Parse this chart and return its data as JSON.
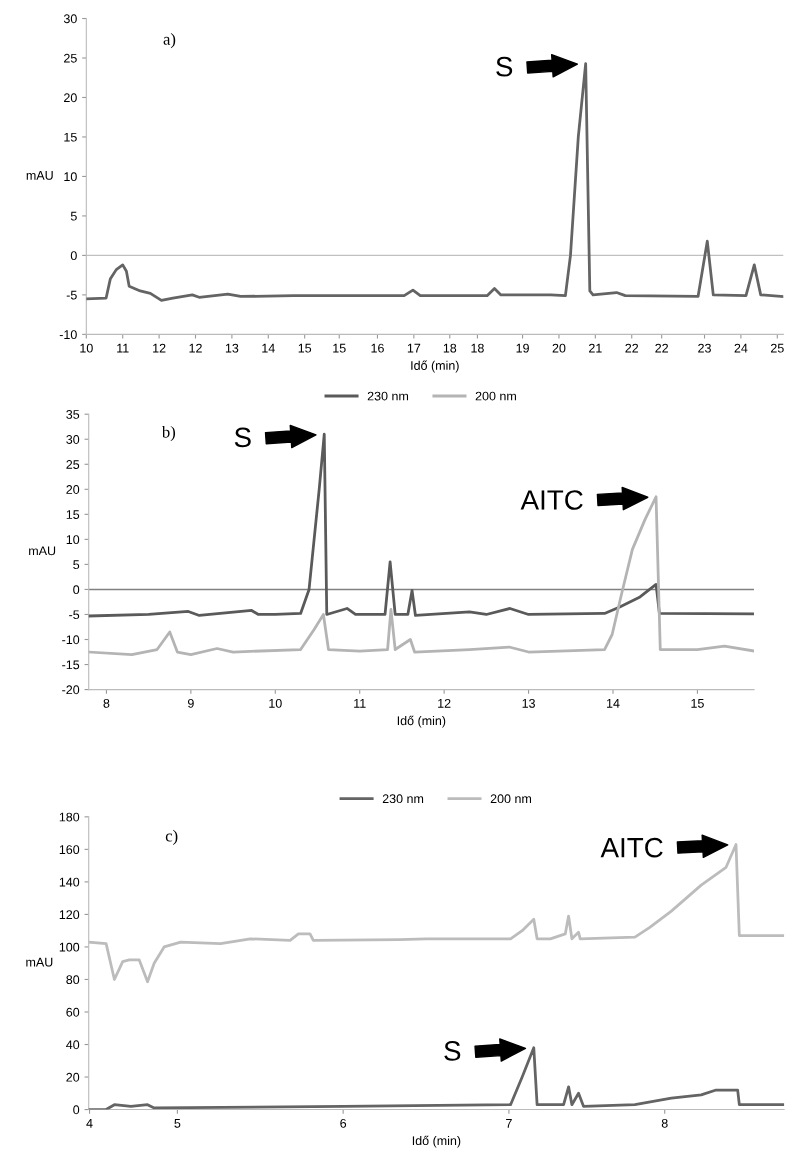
{
  "chart_data": [
    {
      "type": "line",
      "xlabel": "Idő (min)",
      "ylabel": "mAU",
      "xlim": [
        10,
        25.13
      ],
      "ylim": [
        -10,
        30
      ],
      "yticks": [
        -10,
        -5,
        0,
        5,
        10,
        15,
        20,
        25,
        30
      ],
      "xticks": [
        {
          "value": 10,
          "label": "10"
        },
        {
          "value": 10.79,
          "label": "11"
        },
        {
          "value": 11.58,
          "label": "12"
        },
        {
          "value": 12.37,
          "label": "12"
        },
        {
          "value": 13.16,
          "label": "13"
        },
        {
          "value": 13.95,
          "label": "14"
        },
        {
          "value": 14.74,
          "label": "15"
        },
        {
          "value": 15.49,
          "label": "15"
        },
        {
          "value": 16.32,
          "label": "16"
        },
        {
          "value": 17.11,
          "label": "17"
        },
        {
          "value": 17.89,
          "label": "18"
        },
        {
          "value": 18.49,
          "label": "18"
        },
        {
          "value": 19.47,
          "label": "19"
        },
        {
          "value": 20.26,
          "label": "20"
        },
        {
          "value": 21.05,
          "label": "21"
        },
        {
          "value": 21.84,
          "label": "22"
        },
        {
          "value": 22.49,
          "label": "22"
        },
        {
          "value": 23.42,
          "label": "23"
        },
        {
          "value": 24.21,
          "label": "24"
        },
        {
          "value": 25,
          "label": "25"
        }
      ],
      "ref_lines": [
        {
          "axis": "y",
          "value": 0,
          "color": "#c0c0c0"
        }
      ],
      "annotations": [
        "a)",
        {
          "text": "S",
          "x": 20.84,
          "y": 24.3
        }
      ],
      "grid": false,
      "legend": false,
      "marker": "none",
      "line_style": "solid",
      "series": [
        {
          "color": "#646464",
          "x": [
            10,
            10.43,
            10.52,
            10.65,
            10.79,
            10.87,
            10.93,
            11.17,
            11.39,
            11.63,
            11.88,
            12.3,
            12.45,
            13.07,
            13.35,
            14.5,
            16.9,
            17.09,
            17.25,
            18.7,
            18.86,
            19.0,
            20.08,
            20.4,
            20.51,
            20.68,
            20.84,
            20.93,
            21.0,
            21.51,
            21.7,
            23.28,
            23.48,
            23.61,
            24.32,
            24.5,
            24.64,
            25.13
          ],
          "values": [
            -5.5,
            -5.4,
            -3.0,
            -1.8,
            -1.2,
            -2.0,
            -3.9,
            -4.5,
            -4.8,
            -5.7,
            -5.4,
            -5.0,
            -5.3,
            -4.9,
            -5.2,
            -5.1,
            -5.1,
            -4.4,
            -5.1,
            -5.1,
            -4.2,
            -5.0,
            -5.0,
            -5.1,
            0,
            15,
            24.3,
            -4.5,
            -5.0,
            -4.7,
            -5.1,
            -5.2,
            1.8,
            -5.0,
            -5.1,
            -1.2,
            -5.0,
            -5.2
          ]
        }
      ]
    },
    {
      "type": "line",
      "xlabel": "Idő (min)",
      "ylabel": "mAU",
      "xlim": [
        7.79,
        15.67
      ],
      "ylim": [
        -20,
        35
      ],
      "yticks": [
        -20,
        -15,
        -10,
        -5,
        0,
        5,
        10,
        15,
        20,
        25,
        30,
        35
      ],
      "xticks": [
        8,
        9,
        10,
        11,
        12,
        13,
        14,
        15
      ],
      "ref_lines": [
        {
          "axis": "y",
          "value": 0,
          "color": "#808080"
        }
      ],
      "annotations": [
        "b)",
        {
          "text": "S",
          "x": 10.58,
          "y": 31
        },
        {
          "text": "AITC",
          "x": 14.51,
          "y": 18.5
        }
      ],
      "grid": false,
      "legend": "top",
      "marker": "none",
      "line_style": "solid",
      "series": [
        {
          "name": "230 nm",
          "color": "#5a5a5a",
          "x": [
            7.79,
            8.5,
            8.97,
            9.1,
            9.72,
            9.8,
            10.0,
            10.3,
            10.4,
            10.52,
            10.58,
            10.61,
            10.85,
            10.95,
            11.3,
            11.36,
            11.42,
            11.57,
            11.62,
            11.66,
            12.3,
            12.5,
            12.78,
            13.0,
            13.9,
            14.08,
            14.32,
            14.51,
            14.55,
            15.67
          ],
          "values": [
            -5.3,
            -5.0,
            -4.4,
            -5.2,
            -4.2,
            -5.0,
            -5.0,
            -4.8,
            0,
            20,
            31,
            -5,
            -3.8,
            -5.0,
            -5,
            5.5,
            -5,
            -5,
            -0.2,
            -5.2,
            -4.5,
            -5,
            -3.8,
            -5,
            -4.8,
            -3.5,
            -1.5,
            1.0,
            -4.8,
            -4.9
          ]
        },
        {
          "name": "200 nm",
          "color": "#b4b4b4",
          "x": [
            7.79,
            8.3,
            8.6,
            8.75,
            8.84,
            9.0,
            9.31,
            9.5,
            10.3,
            10.46,
            10.57,
            10.63,
            11.0,
            11.33,
            11.37,
            11.42,
            11.6,
            11.65,
            12.3,
            12.77,
            13.0,
            13.9,
            13.99,
            14.1,
            14.23,
            14.38,
            14.51,
            14.56,
            15.0,
            15.32,
            15.67
          ],
          "values": [
            -12.5,
            -13,
            -12,
            -8.5,
            -12.5,
            -13,
            -11.8,
            -12.5,
            -12,
            -8,
            -5,
            -12,
            -12.3,
            -12,
            -4,
            -12,
            -10,
            -12.5,
            -12,
            -11.5,
            -12.5,
            -12,
            -9,
            -1,
            8,
            14,
            18.5,
            -12,
            -12,
            -11.3,
            -12.3
          ]
        }
      ]
    },
    {
      "type": "line",
      "xlabel": "Idő (min)",
      "ylabel": "mAU",
      "xlim": [
        4.465,
        8.66
      ],
      "ylim": [
        0,
        180
      ],
      "yticks": [
        0,
        20,
        40,
        60,
        80,
        100,
        120,
        140,
        160,
        180
      ],
      "xticks": [
        {
          "value": 4.47,
          "label": "4"
        },
        5,
        6,
        7,
        {
          "value": 7.94,
          "label": "8"
        }
      ],
      "annotations": [
        "c)",
        {
          "text": "S",
          "x": 7.15,
          "y": 38
        },
        {
          "text": "AITC",
          "x": 8.37,
          "y": 163
        }
      ],
      "grid": false,
      "legend": "top",
      "marker": "none",
      "line_style": "solid",
      "series": [
        {
          "name": "230 nm",
          "color": "#646464",
          "x": [
            4.465,
            4.57,
            4.62,
            4.72,
            4.82,
            4.86,
            6.0,
            7.01,
            7.08,
            7.15,
            7.17,
            7.33,
            7.36,
            7.38,
            7.42,
            7.45,
            7.76,
            7.98,
            8.16,
            8.25,
            8.38,
            8.39,
            8.66
          ],
          "values": [
            0,
            0,
            3,
            2,
            3,
            1,
            2,
            3,
            20,
            38,
            3,
            3,
            14,
            3,
            10,
            2,
            3,
            7,
            9,
            12,
            12,
            3,
            3
          ]
        },
        {
          "name": "200 nm",
          "color": "#bcbcbc",
          "x": [
            4.465,
            4.57,
            4.62,
            4.67,
            4.71,
            4.77,
            4.82,
            4.86,
            4.92,
            5.02,
            5.26,
            5.44,
            5.68,
            5.73,
            5.8,
            5.82,
            6.34,
            6.5,
            7.01,
            7.08,
            7.15,
            7.17,
            7.25,
            7.34,
            7.36,
            7.38,
            7.42,
            7.43,
            7.76,
            7.85,
            7.98,
            8.16,
            8.31,
            8.37,
            8.39,
            8.66
          ],
          "values": [
            103,
            102,
            80,
            91,
            92,
            92,
            78.6,
            90,
            100,
            103,
            102,
            105,
            104,
            108,
            108,
            104,
            104.5,
            105,
            105,
            110,
            117,
            105,
            105,
            108,
            119,
            105,
            109,
            105,
            106,
            112,
            122,
            138,
            149,
            163,
            107,
            107
          ]
        }
      ]
    }
  ]
}
